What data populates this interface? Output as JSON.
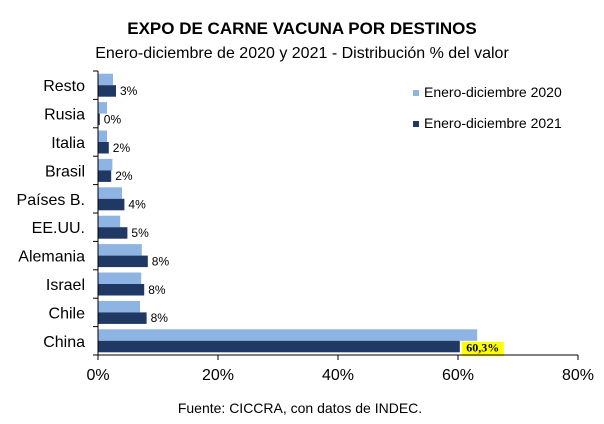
{
  "chart_data": {
    "type": "bar",
    "orientation": "horizontal",
    "title": "EXPO DE CARNE VACUNA POR DESTINOS",
    "subtitle": "Enero-diciembre de 2020 y 2021 - Distribución % del valor",
    "categories": [
      "Resto",
      "Rusia",
      "Italia",
      "Brasil",
      "Países B.",
      "EE.UU.",
      "Alemania",
      "Israel",
      "Chile",
      "China"
    ],
    "series": [
      {
        "name": "Enero-diciembre 2020",
        "color": "#8eb4e3",
        "values": [
          2.5,
          1.5,
          1.5,
          2.4,
          4.0,
          3.7,
          7.3,
          7.2,
          7.0,
          63.2
        ]
      },
      {
        "name": "Enero-diciembre 2021",
        "color": "#1f3864",
        "values": [
          3,
          0.3,
          1.8,
          2.2,
          4.4,
          4.9,
          8.3,
          7.7,
          8.1,
          60.3
        ],
        "labels": [
          "3%",
          "0%",
          "2%",
          "2%",
          "4%",
          "5%",
          "8%",
          "8%",
          "8%",
          "60,3%"
        ]
      }
    ],
    "xlim": [
      0,
      80
    ],
    "xticks": [
      "0%",
      "20%",
      "40%",
      "60%",
      "80%"
    ],
    "grid": false,
    "legend_position": "top-right",
    "highlight_label_color": "#ffff00",
    "source": "Fuente: CICCRA, con datos de INDEC."
  }
}
